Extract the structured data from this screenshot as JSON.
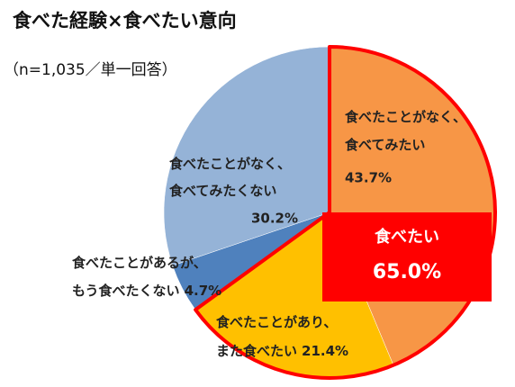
{
  "chart_data": {
    "type": "pie",
    "title": "食べた経験×食べたい意向",
    "subtitle": "（n=1,035／単一回答）",
    "categories": [
      [
        "食べたことがなく、",
        "食べてみたい"
      ],
      [
        "食べたことがあり、",
        "また食べたい"
      ],
      [
        "食べたことがあるが、",
        "もう食べたくない"
      ],
      [
        "食べたことがなく、",
        "食べてみたくない"
      ]
    ],
    "values": [
      43.7,
      21.4,
      4.7,
      30.2
    ],
    "value_labels": [
      "43.7%",
      "21.4%",
      "4.7%",
      "30.2%"
    ],
    "colors": [
      "#f79646",
      "#ffc000",
      "#4f81bd",
      "#95b3d7"
    ],
    "highlight": {
      "name": "食べたい",
      "value": 65.0,
      "value_label": "65.0%",
      "color": "#ff0000"
    }
  }
}
